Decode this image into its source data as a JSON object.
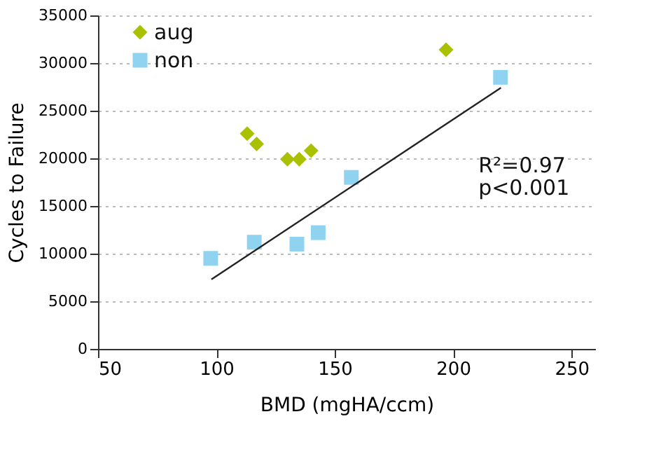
{
  "chart_data": {
    "type": "scatter",
    "xlabel": "BMD (mgHA/ccm)",
    "ylabel": "Cycles to Failure",
    "series": [
      {
        "name": "aug",
        "color": "#a9c100",
        "marker": "diamond",
        "x": [
          113,
          117,
          130,
          135,
          140,
          197
        ],
        "values": [
          22600,
          21500,
          19900,
          19900,
          20800,
          31400
        ]
      },
      {
        "name": "non",
        "color": "#8fd3f1",
        "marker": "square",
        "x": [
          97.6,
          116,
          134,
          143,
          157,
          220
        ],
        "values": [
          9500,
          11200,
          11000,
          12200,
          18000,
          28500
        ]
      },
      {
        "type": "line",
        "color": "#222222",
        "x": [
          97.9,
          220.2
        ],
        "values": [
          7300,
          27400
        ]
      }
    ],
    "xlim": [
      50,
      260
    ],
    "xticks": [
      50,
      100,
      150,
      200,
      250
    ],
    "ylim": [
      0,
      35000
    ],
    "yticks": [
      0,
      5000,
      10000,
      15000,
      20000,
      25000,
      30000,
      35000
    ],
    "grid": "y",
    "legend": "top left",
    "annotations": [
      "R²=0.97",
      "p<0.001"
    ]
  }
}
